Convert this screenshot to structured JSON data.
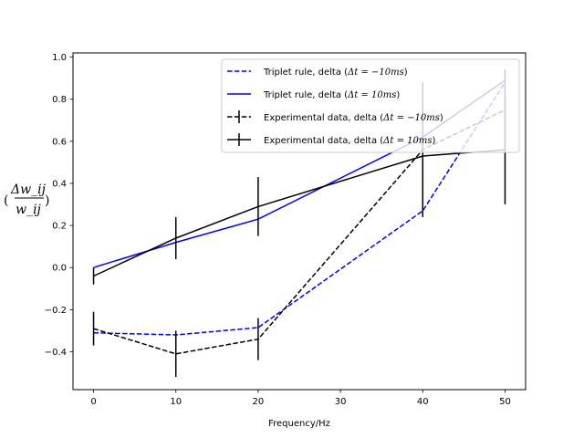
{
  "chart_data": {
    "type": "line",
    "title": "",
    "xlabel": "Frequency/Hz",
    "ylabel": "(Δw_ij / w_ij)",
    "ylabel_parts": {
      "open": "(",
      "numerator": "Δw_ij",
      "denominator": "w_ij",
      "close": ")"
    },
    "xlim": [
      -2.5,
      52.5
    ],
    "ylim": [
      -0.58,
      1.02
    ],
    "xticks": [
      0,
      10,
      20,
      30,
      40,
      50
    ],
    "yticks": [
      -0.4,
      -0.2,
      0.0,
      0.2,
      0.4,
      0.6,
      0.8,
      1.0
    ],
    "xtick_labels": [
      "0",
      "10",
      "20",
      "30",
      "40",
      "50"
    ],
    "ytick_labels": [
      "−0.4",
      "−0.2",
      "0.0",
      "0.2",
      "0.4",
      "0.6",
      "0.8",
      "1.0"
    ],
    "x": [
      0,
      10,
      20,
      40,
      50
    ],
    "legend_position": "top-right",
    "series": [
      {
        "name": "Triplet rule, delta (Δt = −10ms)",
        "color": "#0000ff",
        "dashed": true,
        "errorbars": false,
        "values": [
          -0.31,
          -0.32,
          -0.285,
          0.27,
          0.88
        ]
      },
      {
        "name": "Triplet rule, delta (Δt = 10ms)",
        "color": "#0000ff",
        "dashed": false,
        "errorbars": false,
        "values": [
          0.0,
          0.12,
          0.23,
          0.62,
          0.89
        ]
      },
      {
        "name": "Experimental data, delta (Δt = −10ms)",
        "color": "#000000",
        "dashed": true,
        "errorbars": true,
        "values": [
          -0.29,
          -0.41,
          -0.34,
          0.56,
          0.75
        ],
        "errors": [
          0.08,
          0.11,
          0.1,
          0.32,
          0.19
        ]
      },
      {
        "name": "Experimental data, delta (Δt = 10ms)",
        "color": "#000000",
        "dashed": false,
        "errorbars": true,
        "values": [
          -0.04,
          0.14,
          0.29,
          0.53,
          0.56
        ],
        "errors": [
          0.04,
          0.1,
          0.14,
          0.27,
          0.26
        ]
      }
    ],
    "legend": [
      {
        "prefix": "Triplet rule, delta (",
        "math": "Δt = −10ms",
        "suffix": ")"
      },
      {
        "prefix": "Triplet rule, delta (",
        "math": "Δt = 10ms",
        "suffix": ")"
      },
      {
        "prefix": "Experimental data, delta (",
        "math": "Δt = −10ms",
        "suffix": ")"
      },
      {
        "prefix": "Experimental data, delta (",
        "math": "Δt = 10ms",
        "suffix": ")"
      }
    ]
  }
}
